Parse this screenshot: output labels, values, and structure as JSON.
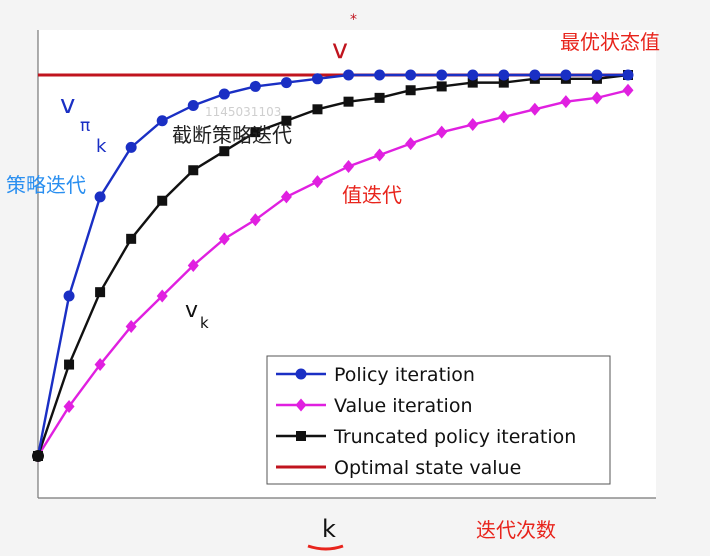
{
  "chart_data": {
    "type": "line",
    "title": "",
    "xlabel": "k",
    "ylabel": "",
    "grid": false,
    "legend_position": "bottom-right",
    "x": [
      0,
      1,
      2,
      3,
      4,
      5,
      6,
      7,
      8,
      9,
      10,
      11,
      12,
      13,
      14,
      15,
      16,
      17,
      18,
      19
    ],
    "series": [
      {
        "name": "Policy iteration",
        "color": "#1a2fc4",
        "marker": "circle",
        "values": [
          0,
          0.42,
          0.68,
          0.81,
          0.88,
          0.92,
          0.95,
          0.97,
          0.98,
          0.99,
          1.0,
          1.0,
          1.0,
          1.0,
          1.0,
          1.0,
          1.0,
          1.0,
          1.0,
          1.0
        ]
      },
      {
        "name": "Value iteration",
        "color": "#e020e0",
        "marker": "diamond",
        "values": [
          0,
          0.13,
          0.24,
          0.34,
          0.42,
          0.5,
          0.57,
          0.62,
          0.68,
          0.72,
          0.76,
          0.79,
          0.82,
          0.85,
          0.87,
          0.89,
          0.91,
          0.93,
          0.94,
          0.96
        ]
      },
      {
        "name": "Truncated policy iteration",
        "color": "#111111",
        "marker": "square",
        "values": [
          0,
          0.24,
          0.43,
          0.57,
          0.67,
          0.75,
          0.8,
          0.85,
          0.88,
          0.91,
          0.93,
          0.94,
          0.96,
          0.97,
          0.98,
          0.98,
          0.99,
          0.99,
          0.99,
          1.0
        ]
      },
      {
        "name": "Optimal state value",
        "color": "#c0141e",
        "marker": "none",
        "values": [
          1.0,
          1.0
        ],
        "x": [
          0,
          19
        ]
      }
    ],
    "ylim": [
      0,
      1.15
    ],
    "xlim": [
      0,
      19
    ],
    "annotations": {
      "v_star": "v",
      "v_star_sup": "*",
      "v_pi": "v",
      "v_pi_sub": "π",
      "v_pi_sub2": "k",
      "v_k": "v",
      "v_k_sub": "k",
      "optimal_cn": "最优状态值",
      "policy_cn": "策略迭代",
      "truncated_cn": "截断策略迭代",
      "value_cn": "值迭代",
      "iterations_cn": "迭代次数",
      "watermark": "1145031103"
    },
    "colors": {
      "annotation_red": "#e8241c",
      "annotation_blue": "#2a8ff0"
    }
  }
}
